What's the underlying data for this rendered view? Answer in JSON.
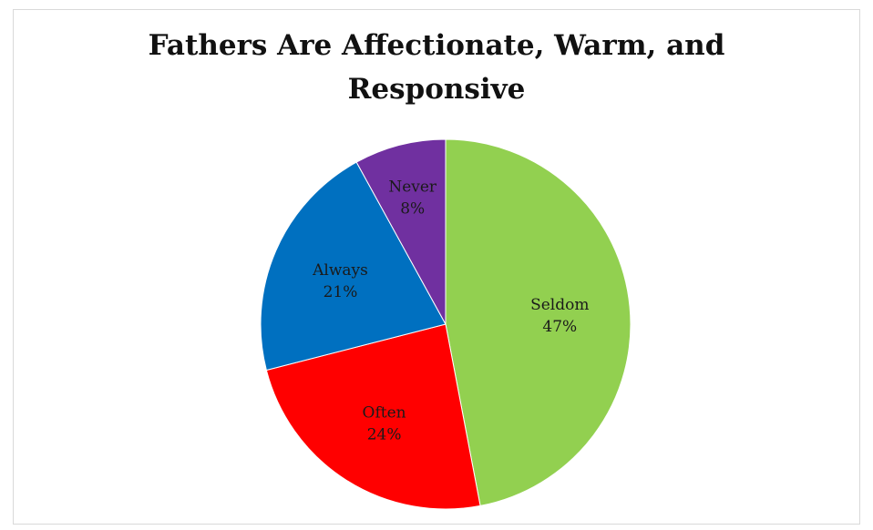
{
  "chart_data": {
    "type": "pie",
    "title": "Fathers Are Affectionate, Warm, and Responsive",
    "title_lines": [
      "Fathers Are Affectionate, Warm, and",
      "Responsive"
    ],
    "categories": [
      "Seldom",
      "Often",
      "Always",
      "Never"
    ],
    "values": [
      47,
      24,
      21,
      8
    ],
    "value_labels": [
      "47%",
      "24%",
      "21%",
      "8%"
    ],
    "colors": [
      "#92d050",
      "#ff0000",
      "#0070c0",
      "#7030a0"
    ],
    "start_angle": "12 o'clock",
    "direction": "clockwise",
    "legend": "none",
    "data_labels": "inside"
  }
}
